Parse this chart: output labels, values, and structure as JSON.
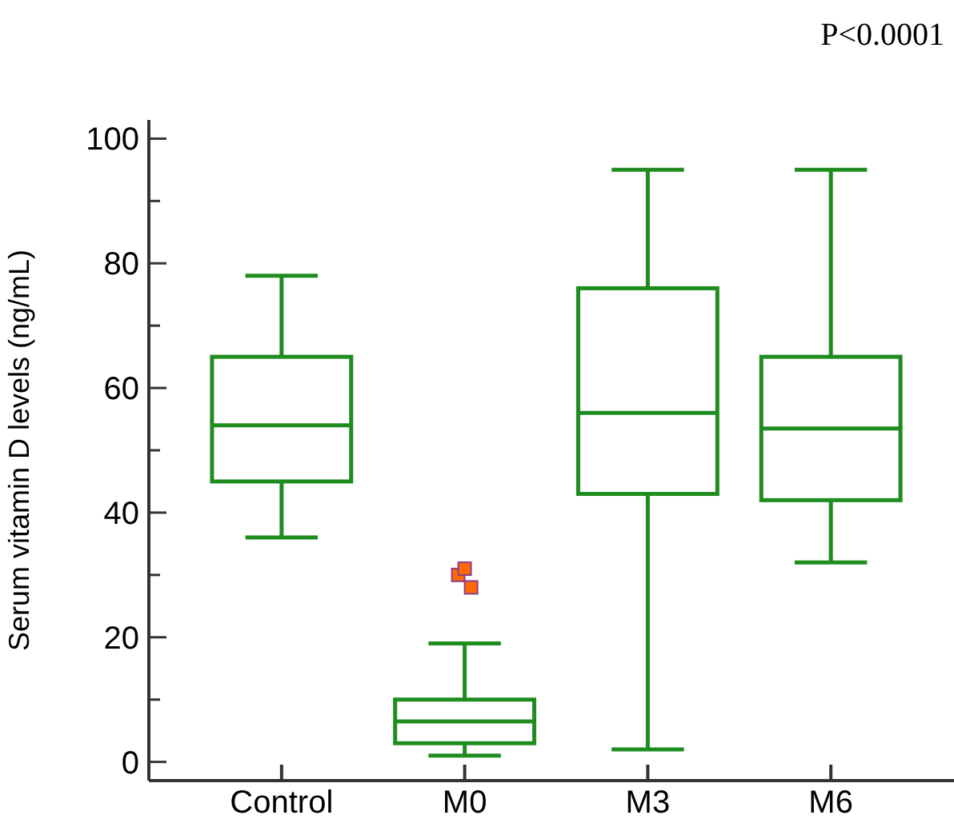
{
  "chart_data": {
    "type": "box",
    "ylabel": "Serum vitamin D levels (ng/mL)",
    "categories": [
      "Control",
      "M0",
      "M3",
      "M6"
    ],
    "color": "#1e8c1e",
    "boxes": [
      {
        "low": 36,
        "q1": 45,
        "median": 54,
        "q3": 65,
        "high": 78
      },
      {
        "low": 1,
        "q1": 3,
        "median": 6.5,
        "q3": 10,
        "high": 19,
        "outliers": [
          30,
          31,
          28
        ]
      },
      {
        "low": 2,
        "q1": 43,
        "median": 56,
        "q3": 76,
        "high": 95
      },
      {
        "low": 32,
        "q1": 42,
        "median": 53.5,
        "q3": 65,
        "high": 95
      }
    ],
    "ylim": [
      -3,
      103
    ],
    "yticks": [
      0,
      {
        "value": 10,
        "label": null
      },
      20,
      {
        "value": 30,
        "label": null
      },
      40,
      {
        "value": 50,
        "label": null
      },
      60,
      {
        "value": 70,
        "label": null
      },
      80,
      {
        "value": 90,
        "label": null
      },
      100
    ],
    "annotations": [
      "P<0.0001"
    ],
    "grid": false
  }
}
